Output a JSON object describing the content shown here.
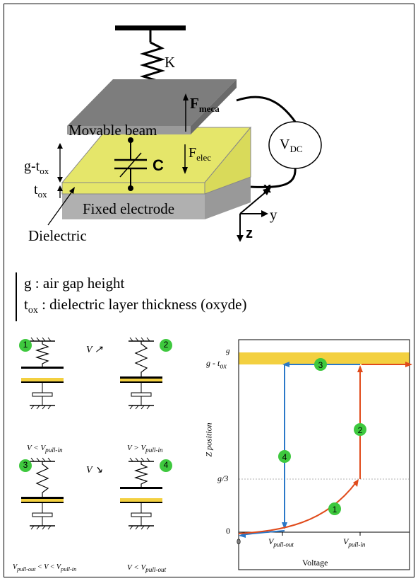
{
  "top_diagram": {
    "spring_label": "K",
    "force_meca": "F",
    "force_meca_sub": "meca",
    "beam_label": "Movable beam",
    "force_elec": "F",
    "force_elec_sub": "elec",
    "source_label": "V",
    "source_sub": "DC",
    "gap_label_a": "g-t",
    "gap_label_sub": "ox",
    "tox_label": "t",
    "tox_sub": "ox",
    "cap_label": "C",
    "electrode_label": "Fixed electrode",
    "dielectric_label": "Dielectric",
    "axis_x": "x",
    "axis_y": "y",
    "axis_z": "z"
  },
  "legend": {
    "line1": "g :  air gap height",
    "line2_t": "t",
    "line2_sub": "ox",
    "line2_rest": " : dielectric layer thickness (oxyde)"
  },
  "states": [
    {
      "num": "1",
      "cond": "V < V",
      "cond_sub": "pull-in"
    },
    {
      "num": "2",
      "cond": "V > V",
      "cond_sub": "pull-in"
    },
    {
      "num": "3",
      "cond": "V",
      "cond_sub": "pull-out",
      "cond_mid": " < V < V",
      "cond_sub2": "pull-in"
    },
    {
      "num": "4",
      "cond": "V < V",
      "cond_sub": "pull-out"
    }
  ],
  "arrow_up": "V ↗",
  "arrow_down": "V ↘",
  "chart": {
    "ylabel": "Z position",
    "xlabel": "Voltage",
    "ytick_top": "g - t",
    "ytick_top_sub": "ox",
    "ytick_top_sup": "g",
    "ytick_mid": "g/3",
    "ytick_zero": "0",
    "xtick_zero": "0",
    "xtick_pullout": "V",
    "xtick_pullout_sub": "pull-out",
    "xtick_pullin": "V",
    "xtick_pullin_sub": "pull-in",
    "markers": [
      "1",
      "2",
      "3",
      "4"
    ],
    "colors": {
      "up": "#e04a1a",
      "down": "#2a78c8",
      "band": "#f3d040",
      "marker": "#3ec83e"
    }
  }
}
